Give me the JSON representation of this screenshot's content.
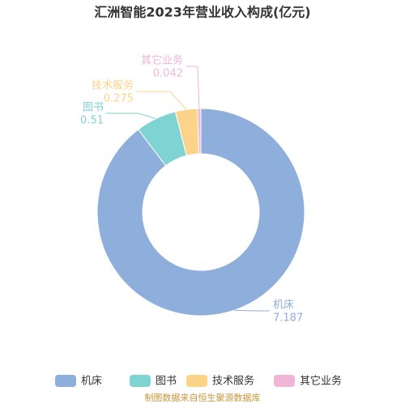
{
  "chart_data": {
    "type": "donut",
    "title": "汇洲智能2023年营业收入构成(亿元)",
    "categories": [
      "机床",
      "图书",
      "技术服务",
      "其它业务"
    ],
    "values": [
      7.187,
      0.51,
      0.275,
      0.042
    ],
    "colors": [
      "#8eaedc",
      "#7fd3d3",
      "#fdd38a",
      "#f0b6d8"
    ],
    "legend": "bottom",
    "source": "制图数据来自恒生聚源数据库"
  }
}
